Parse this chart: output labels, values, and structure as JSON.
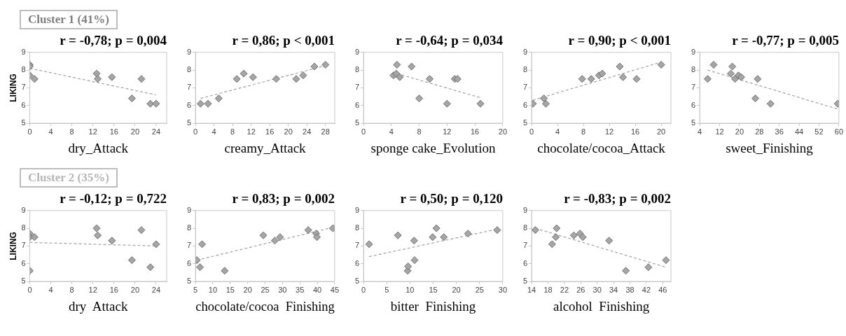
{
  "chart_data": [
    {
      "type": "scatter",
      "subtitle": "Cluster 1 (41%)",
      "title": "r = -0,78; p = 0,004",
      "xlabel": "dry_Attack",
      "ylabel": "LIKING",
      "xlim": [
        0,
        26
      ],
      "xticks": [
        0,
        4,
        8,
        12,
        16,
        20,
        24
      ],
      "ylim": [
        5,
        9
      ],
      "yticks": [
        5,
        6,
        7,
        8,
        9
      ],
      "grid": false,
      "legend": false,
      "series": [
        {
          "marker": "diamond",
          "color": "#a6a6a6",
          "x": [
            0,
            0,
            0,
            0.9,
            12.7,
            12.9,
            15.6,
            19.4,
            21.2,
            22.9,
            24
          ],
          "values": [
            8.3,
            8.2,
            7.7,
            7.5,
            7.8,
            7.5,
            7.6,
            6.4,
            7.5,
            6.1,
            6.1
          ]
        },
        {
          "type": "line",
          "color": "#a0a0a0",
          "line_style": "dashed",
          "x": [
            0,
            24
          ],
          "values": [
            8.1,
            6.6
          ]
        }
      ]
    },
    {
      "type": "scatter",
      "title": "r = 0,86; p < 0,001",
      "xlabel": "creamy_Attack",
      "xlim": [
        0,
        30
      ],
      "xticks": [
        0,
        4,
        8,
        12,
        16,
        20,
        24,
        28
      ],
      "ylim": [
        5,
        9
      ],
      "yticks": [
        5,
        6,
        7,
        8,
        9
      ],
      "grid": false,
      "legend": false,
      "series": [
        {
          "marker": "diamond",
          "color": "#a6a6a6",
          "x": [
            1.1,
            2.7,
            5.0,
            8.9,
            10.4,
            12.4,
            17.4,
            21.7,
            23.2,
            25.6,
            28
          ],
          "values": [
            6.1,
            6.1,
            6.4,
            7.5,
            7.8,
            7.6,
            7.5,
            7.5,
            7.7,
            8.2,
            8.3
          ]
        },
        {
          "type": "line",
          "color": "#a0a0a0",
          "line_style": "dashed",
          "x": [
            1.1,
            28
          ],
          "values": [
            6.4,
            8.25
          ]
        }
      ]
    },
    {
      "type": "scatter",
      "title": "r = -0,64; p = 0,034",
      "xlabel": "sponge cake_Evolution",
      "xlim": [
        0,
        20
      ],
      "xticks": [
        0,
        4,
        8,
        12,
        16,
        20
      ],
      "ylim": [
        5,
        9
      ],
      "yticks": [
        5,
        6,
        7,
        8,
        9
      ],
      "grid": false,
      "legend": false,
      "series": [
        {
          "marker": "diamond",
          "color": "#a6a6a6",
          "x": [
            4.3,
            4.7,
            4.8,
            5.2,
            6.9,
            8.0,
            9.5,
            12.0,
            13.1,
            13.5,
            16.8
          ],
          "values": [
            7.7,
            7.8,
            8.3,
            7.6,
            8.2,
            6.4,
            7.5,
            6.1,
            7.5,
            7.5,
            6.1
          ]
        },
        {
          "type": "line",
          "color": "#a0a0a0",
          "line_style": "dashed",
          "x": [
            4.8,
            16.7
          ],
          "values": [
            7.8,
            6.45
          ]
        }
      ]
    },
    {
      "type": "scatter",
      "title": "r = 0,90; p < 0,001",
      "xlabel": "chocolate/cocoa_Attack",
      "xlim": [
        0,
        21.5
      ],
      "xticks": [
        0,
        4,
        8,
        12,
        16,
        20
      ],
      "ylim": [
        5,
        9
      ],
      "yticks": [
        5,
        6,
        7,
        8,
        9
      ],
      "grid": false,
      "legend": false,
      "series": [
        {
          "marker": "diamond",
          "color": "#a6a6a6",
          "x": [
            0.2,
            1.9,
            2.2,
            7.8,
            9.2,
            10.4,
            10.9,
            13.6,
            14.1,
            16.2,
            20.0
          ],
          "values": [
            6.1,
            6.4,
            6.1,
            7.5,
            7.5,
            7.7,
            7.8,
            8.2,
            7.6,
            7.5,
            8.3
          ]
        },
        {
          "type": "line",
          "color": "#a0a0a0",
          "line_style": "dashed",
          "x": [
            0.2,
            20
          ],
          "values": [
            6.3,
            8.45
          ]
        }
      ]
    },
    {
      "type": "scatter",
      "title": "r = -0,77; p = 0,005",
      "xlabel": "sweet_Finishing",
      "xlim": [
        4,
        60
      ],
      "xticks": [
        4,
        12,
        20,
        28,
        36,
        44,
        52,
        60
      ],
      "ylim": [
        5,
        9
      ],
      "yticks": [
        5,
        6,
        7,
        8,
        9
      ],
      "grid": false,
      "legend": false,
      "series": [
        {
          "marker": "diamond",
          "color": "#a6a6a6",
          "x": [
            7.2,
            9.6,
            16.5,
            17.1,
            18.2,
            19.6,
            20.7,
            27.3,
            26.4,
            32.5,
            59.5
          ],
          "values": [
            7.5,
            8.3,
            7.8,
            8.2,
            7.5,
            7.7,
            7.6,
            7.5,
            6.4,
            6.1,
            6.1
          ]
        },
        {
          "type": "line",
          "color": "#a0a0a0",
          "line_style": "dashed",
          "x": [
            7.2,
            59.5
          ],
          "values": [
            8.0,
            5.8
          ]
        }
      ]
    },
    {
      "type": "scatter",
      "subtitle": "Cluster 2 (35%)",
      "title": "r = -0,12; p = 0,722",
      "xlabel": "dry  Attack",
      "ylabel": "LIKING",
      "xlim": [
        0,
        26
      ],
      "xticks": [
        0,
        4,
        8,
        12,
        16,
        20,
        24
      ],
      "ylim": [
        5,
        9
      ],
      "yticks": [
        5,
        6,
        7,
        8,
        9
      ],
      "grid": false,
      "legend": false,
      "series": [
        {
          "marker": "diamond",
          "color": "#a6a6a6",
          "x": [
            0,
            0,
            0.9,
            0,
            12.7,
            12.9,
            15.6,
            19.4,
            21.2,
            22.9,
            24
          ],
          "values": [
            7.7,
            7.5,
            7.5,
            5.6,
            8.0,
            7.6,
            7.3,
            6.2,
            7.9,
            5.8,
            7.1
          ]
        },
        {
          "type": "line",
          "color": "#a0a0a0",
          "line_style": "dashed",
          "x": [
            0,
            24
          ],
          "values": [
            7.2,
            7.0
          ]
        }
      ]
    },
    {
      "type": "scatter",
      "title": "r = 0,83; p = 0,002",
      "xlabel": "chocolate/cocoa  Finishing",
      "xlim": [
        5,
        45
      ],
      "xticks": [
        5,
        10,
        15,
        20,
        25,
        30,
        35,
        40,
        45
      ],
      "ylim": [
        5,
        9
      ],
      "yticks": [
        5,
        6,
        7,
        8,
        9
      ],
      "grid": false,
      "legend": false,
      "series": [
        {
          "marker": "diamond",
          "color": "#a6a6a6",
          "x": [
            5.4,
            6.3,
            6.9,
            13.4,
            24.5,
            27.8,
            29.3,
            37.4,
            39.7,
            39.9,
            44.5
          ],
          "values": [
            6.2,
            5.8,
            7.1,
            5.6,
            7.6,
            7.3,
            7.5,
            7.9,
            7.7,
            7.5,
            8.0
          ]
        },
        {
          "type": "line",
          "color": "#a0a0a0",
          "line_style": "dashed",
          "x": [
            5.4,
            44.5
          ],
          "values": [
            6.2,
            8.05
          ]
        }
      ]
    },
    {
      "type": "scatter",
      "title": "r = 0,50; p = 0,120",
      "xlabel": "bitter  Finishing",
      "xlim": [
        0,
        30
      ],
      "xticks": [
        0,
        5,
        10,
        15,
        20,
        25,
        30
      ],
      "ylim": [
        5,
        9
      ],
      "yticks": [
        5,
        6,
        7,
        8,
        9
      ],
      "grid": false,
      "legend": false,
      "series": [
        {
          "marker": "diamond",
          "color": "#a6a6a6",
          "x": [
            1.2,
            7.4,
            9.5,
            9.6,
            10.9,
            11.0,
            14.9,
            15.7,
            17.3,
            22.5,
            28.8
          ],
          "values": [
            7.1,
            7.6,
            5.6,
            5.85,
            7.3,
            6.2,
            7.5,
            8.0,
            7.5,
            7.7,
            7.9
          ]
        },
        {
          "type": "line",
          "color": "#a0a0a0",
          "line_style": "dashed",
          "x": [
            1.2,
            28.8
          ],
          "values": [
            6.4,
            7.95
          ]
        }
      ]
    },
    {
      "type": "scatter",
      "title": "r = -0,83; p = 0,002",
      "xlabel": "alcohol  Finishing",
      "xlim": [
        14,
        48
      ],
      "xticks": [
        14,
        18,
        22,
        26,
        30,
        34,
        38,
        42,
        46
      ],
      "ylim": [
        5,
        9
      ],
      "yticks": [
        5,
        6,
        7,
        8,
        9
      ],
      "grid": false,
      "legend": false,
      "series": [
        {
          "marker": "diamond",
          "color": "#a6a6a6",
          "x": [
            14.9,
            19.0,
            19.9,
            20.1,
            24.3,
            25.8,
            26.5,
            32.9,
            37.0,
            42.5,
            46.8
          ],
          "values": [
            7.9,
            7.1,
            7.5,
            8.0,
            7.6,
            7.7,
            7.5,
            7.3,
            5.6,
            5.8,
            6.2
          ]
        },
        {
          "type": "line",
          "color": "#a0a0a0",
          "line_style": "dashed",
          "x": [
            14.9,
            46.8
          ],
          "values": [
            8.0,
            5.8
          ]
        }
      ]
    }
  ]
}
